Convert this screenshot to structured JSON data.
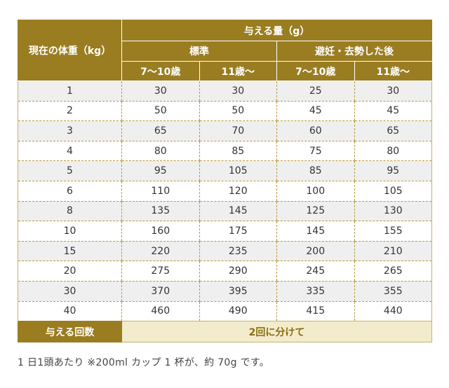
{
  "table": {
    "header": {
      "weight_label": "現在の体重（kg）",
      "amount_label": "与える量（g）",
      "group_standard": "標準",
      "group_neutered": "避妊・去勢した後",
      "age_young": "7〜10歳",
      "age_senior": "11歳〜"
    },
    "rows": [
      {
        "weight": "1",
        "values": [
          "30",
          "30",
          "25",
          "30"
        ]
      },
      {
        "weight": "2",
        "values": [
          "50",
          "50",
          "45",
          "45"
        ]
      },
      {
        "weight": "3",
        "values": [
          "65",
          "70",
          "60",
          "65"
        ]
      },
      {
        "weight": "4",
        "values": [
          "80",
          "85",
          "75",
          "80"
        ]
      },
      {
        "weight": "5",
        "values": [
          "95",
          "105",
          "85",
          "95"
        ]
      },
      {
        "weight": "6",
        "values": [
          "110",
          "120",
          "100",
          "105"
        ]
      },
      {
        "weight": "8",
        "values": [
          "135",
          "145",
          "125",
          "130"
        ]
      },
      {
        "weight": "10",
        "values": [
          "160",
          "175",
          "145",
          "155"
        ]
      },
      {
        "weight": "15",
        "values": [
          "220",
          "235",
          "200",
          "210"
        ]
      },
      {
        "weight": "20",
        "values": [
          "275",
          "290",
          "245",
          "265"
        ]
      },
      {
        "weight": "30",
        "values": [
          "370",
          "395",
          "335",
          "355"
        ]
      },
      {
        "weight": "40",
        "values": [
          "460",
          "490",
          "415",
          "440"
        ]
      }
    ],
    "footer": {
      "label": "与える回数",
      "value": "2回に分けて"
    }
  },
  "note": "1 日1頭あたり ※200ml カップ 1 杯が、約 70g です。",
  "colors": {
    "header_bg": "#9a7d21",
    "footer_value_bg": "#f2eccc",
    "shaded_row_bg": "#efefef"
  }
}
